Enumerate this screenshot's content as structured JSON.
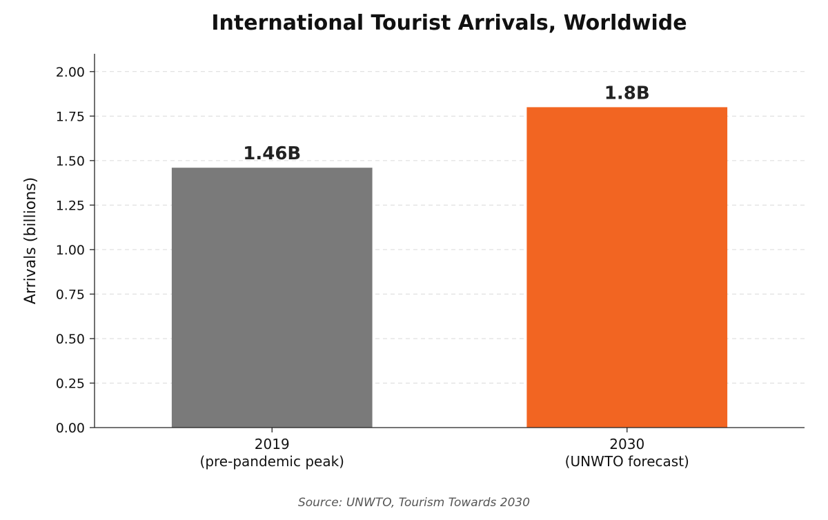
{
  "chart_data": {
    "type": "bar",
    "title": "International Tourist Arrivals, Worldwide",
    "ylabel": "Arrivals (billions)",
    "xlabel": "",
    "categories": [
      [
        "2019",
        "(pre-pandemic peak)"
      ],
      [
        "2030",
        "(UNWTO forecast)"
      ]
    ],
    "values": [
      1.46,
      1.8
    ],
    "value_labels": [
      "1.46B",
      "1.8B"
    ],
    "colors": [
      "#7a7a7a",
      "#f26522"
    ],
    "ylim": [
      0,
      2.1
    ],
    "yticks": [
      0,
      0.25,
      0.5,
      0.75,
      1.0,
      1.25,
      1.5,
      1.75,
      2.0
    ],
    "ytick_labels": [
      "0.00",
      "0.25",
      "0.50",
      "0.75",
      "1.00",
      "1.25",
      "1.50",
      "1.75",
      "2.00"
    ],
    "grid": "horizontal dashed",
    "source": "Source: UNWTO, Tourism Towards 2030"
  }
}
